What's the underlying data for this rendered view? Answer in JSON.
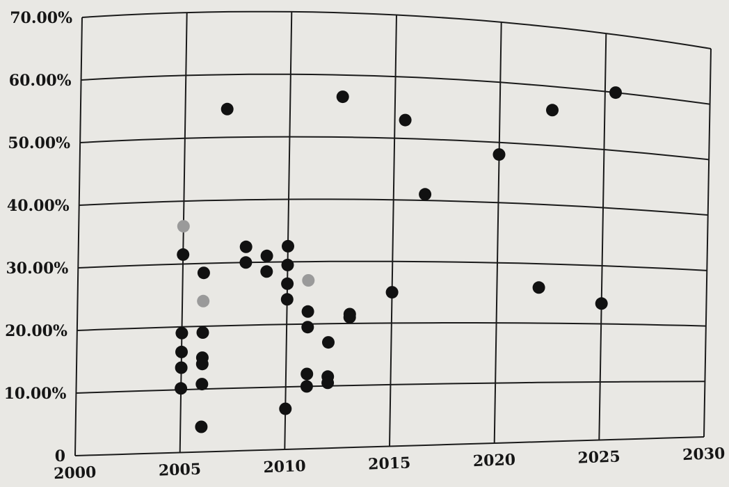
{
  "chart_data": {
    "type": "scatter",
    "title": "",
    "xlabel": "",
    "ylabel": "",
    "xlim": [
      2000,
      2030
    ],
    "ylim": [
      0,
      70
    ],
    "grid": true,
    "x_ticks": [
      {
        "value": 2000,
        "label": "2000"
      },
      {
        "value": 2005,
        "label": "2005"
      },
      {
        "value": 2010,
        "label": "2010"
      },
      {
        "value": 2015,
        "label": "2015"
      },
      {
        "value": 2020,
        "label": "2020"
      },
      {
        "value": 2025,
        "label": "2025"
      },
      {
        "value": 2030,
        "label": "2030"
      }
    ],
    "y_ticks": [
      {
        "value": 0,
        "label": "0"
      },
      {
        "value": 10,
        "label": "10.00%"
      },
      {
        "value": 20,
        "label": "20.00%"
      },
      {
        "value": 30,
        "label": "30.00%"
      },
      {
        "value": 40,
        "label": "40.00%"
      },
      {
        "value": 50,
        "label": "50.00%"
      },
      {
        "value": 60,
        "label": "60.00%"
      },
      {
        "value": 70,
        "label": "70.00%"
      }
    ],
    "point_color": "#111111",
    "faded_color": "#9a9a9a",
    "series": [
      {
        "values": [
          {
            "x": 2005.0,
            "y": 31.5
          },
          {
            "x": 2005.0,
            "y": 19.0
          },
          {
            "x": 2005.0,
            "y": 16.0
          },
          {
            "x": 2005.0,
            "y": 13.5
          },
          {
            "x": 2005.0,
            "y": 10.2
          },
          {
            "x": 2006.0,
            "y": 28.5
          },
          {
            "x": 2006.0,
            "y": 15.0
          },
          {
            "x": 2006.0,
            "y": 14.0
          },
          {
            "x": 2006.0,
            "y": 10.8
          },
          {
            "x": 2006.0,
            "y": 4.0
          },
          {
            "x": 2006.0,
            "y": 19.0
          },
          {
            "x": 2006.0,
            "y": 24.0,
            "faded": true
          },
          {
            "x": 2005.0,
            "y": 36.0,
            "faded": true
          },
          {
            "x": 2007.0,
            "y": 54.5
          },
          {
            "x": 2008.0,
            "y": 32.5
          },
          {
            "x": 2008.0,
            "y": 30.0
          },
          {
            "x": 2009.0,
            "y": 31.0
          },
          {
            "x": 2009.0,
            "y": 28.5
          },
          {
            "x": 2010.0,
            "y": 32.5
          },
          {
            "x": 2010.0,
            "y": 29.5
          },
          {
            "x": 2010.0,
            "y": 26.5
          },
          {
            "x": 2010.0,
            "y": 24.0
          },
          {
            "x": 2010.0,
            "y": 6.5
          },
          {
            "x": 2011.0,
            "y": 27.0,
            "faded": true
          },
          {
            "x": 2011.0,
            "y": 22.0
          },
          {
            "x": 2011.0,
            "y": 19.5
          },
          {
            "x": 2011.0,
            "y": 12.0
          },
          {
            "x": 2011.0,
            "y": 10.0
          },
          {
            "x": 2012.0,
            "y": 17.0
          },
          {
            "x": 2012.0,
            "y": 11.5
          },
          {
            "x": 2012.0,
            "y": 10.5
          },
          {
            "x": 2012.5,
            "y": 56.5
          },
          {
            "x": 2013.0,
            "y": 21.5
          },
          {
            "x": 2013.0,
            "y": 21.0
          },
          {
            "x": 2015.0,
            "y": 25.0
          },
          {
            "x": 2015.5,
            "y": 53.0
          },
          {
            "x": 2016.5,
            "y": 41.0
          },
          {
            "x": 2020.0,
            "y": 48.0
          },
          {
            "x": 2022.0,
            "y": 26.0
          },
          {
            "x": 2022.5,
            "y": 56.0
          },
          {
            "x": 2025.0,
            "y": 23.5
          },
          {
            "x": 2025.5,
            "y": 60.0
          }
        ]
      }
    ]
  }
}
